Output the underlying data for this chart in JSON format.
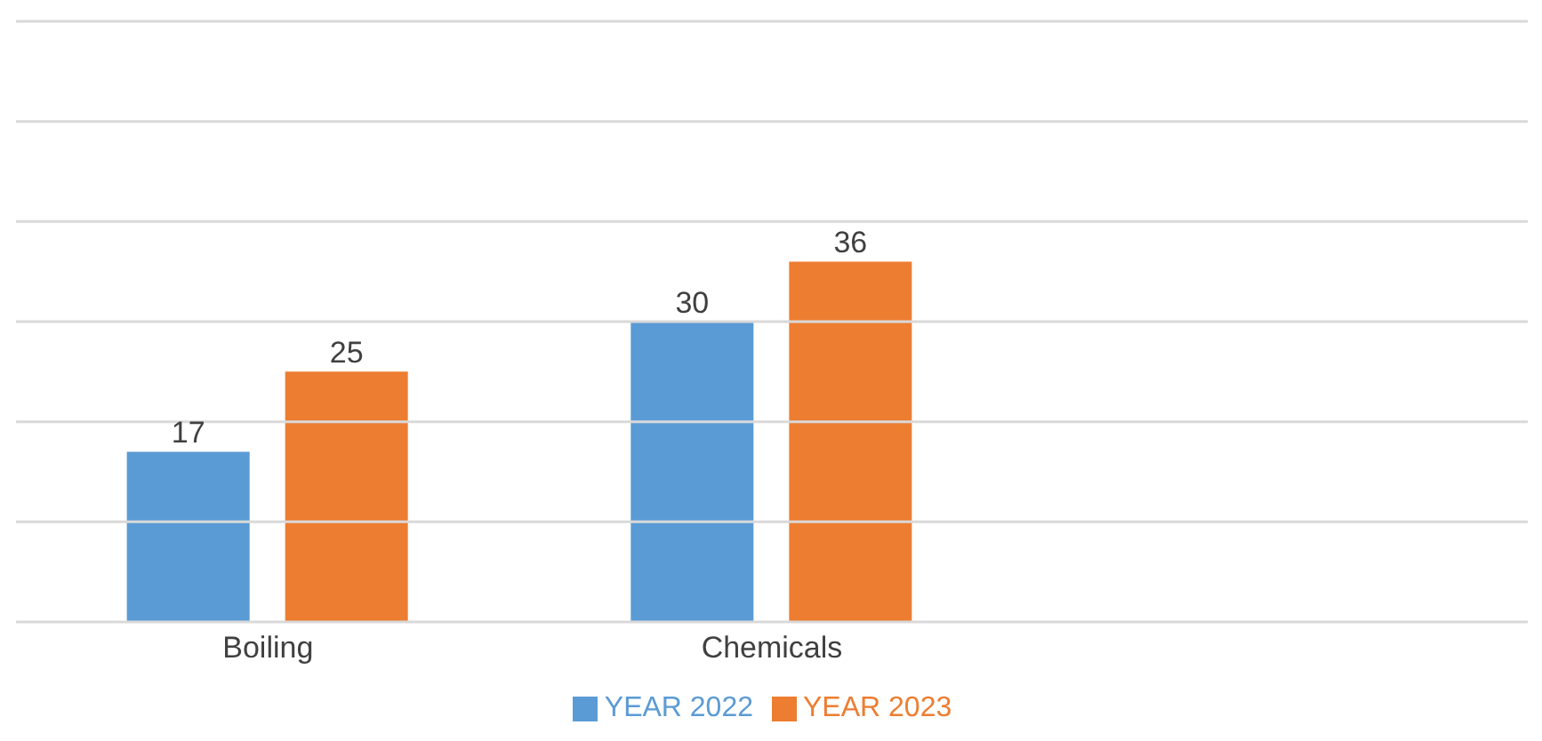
{
  "chart_data": {
    "type": "bar",
    "categories": [
      "Boiling",
      "Chemicals",
      null
    ],
    "series": [
      {
        "name": "YEAR 2022",
        "color": "#5b9bd5",
        "values": [
          17,
          30,
          null
        ]
      },
      {
        "name": "YEAR 2023",
        "color": "#ed7d31",
        "values": [
          25,
          36,
          null
        ]
      }
    ],
    "ylim": [
      0,
      60
    ],
    "yticks": [
      {
        "value": 0,
        "label": null
      },
      {
        "value": 10,
        "label": null
      },
      {
        "value": 20,
        "label": null
      },
      {
        "value": 30,
        "label": null
      },
      {
        "value": 40,
        "label": null
      },
      {
        "value": 50,
        "label": null
      },
      {
        "value": 60,
        "label": null
      }
    ],
    "grid": "y",
    "tick_labels": "x",
    "data_labels": true,
    "legend": "bottom"
  }
}
